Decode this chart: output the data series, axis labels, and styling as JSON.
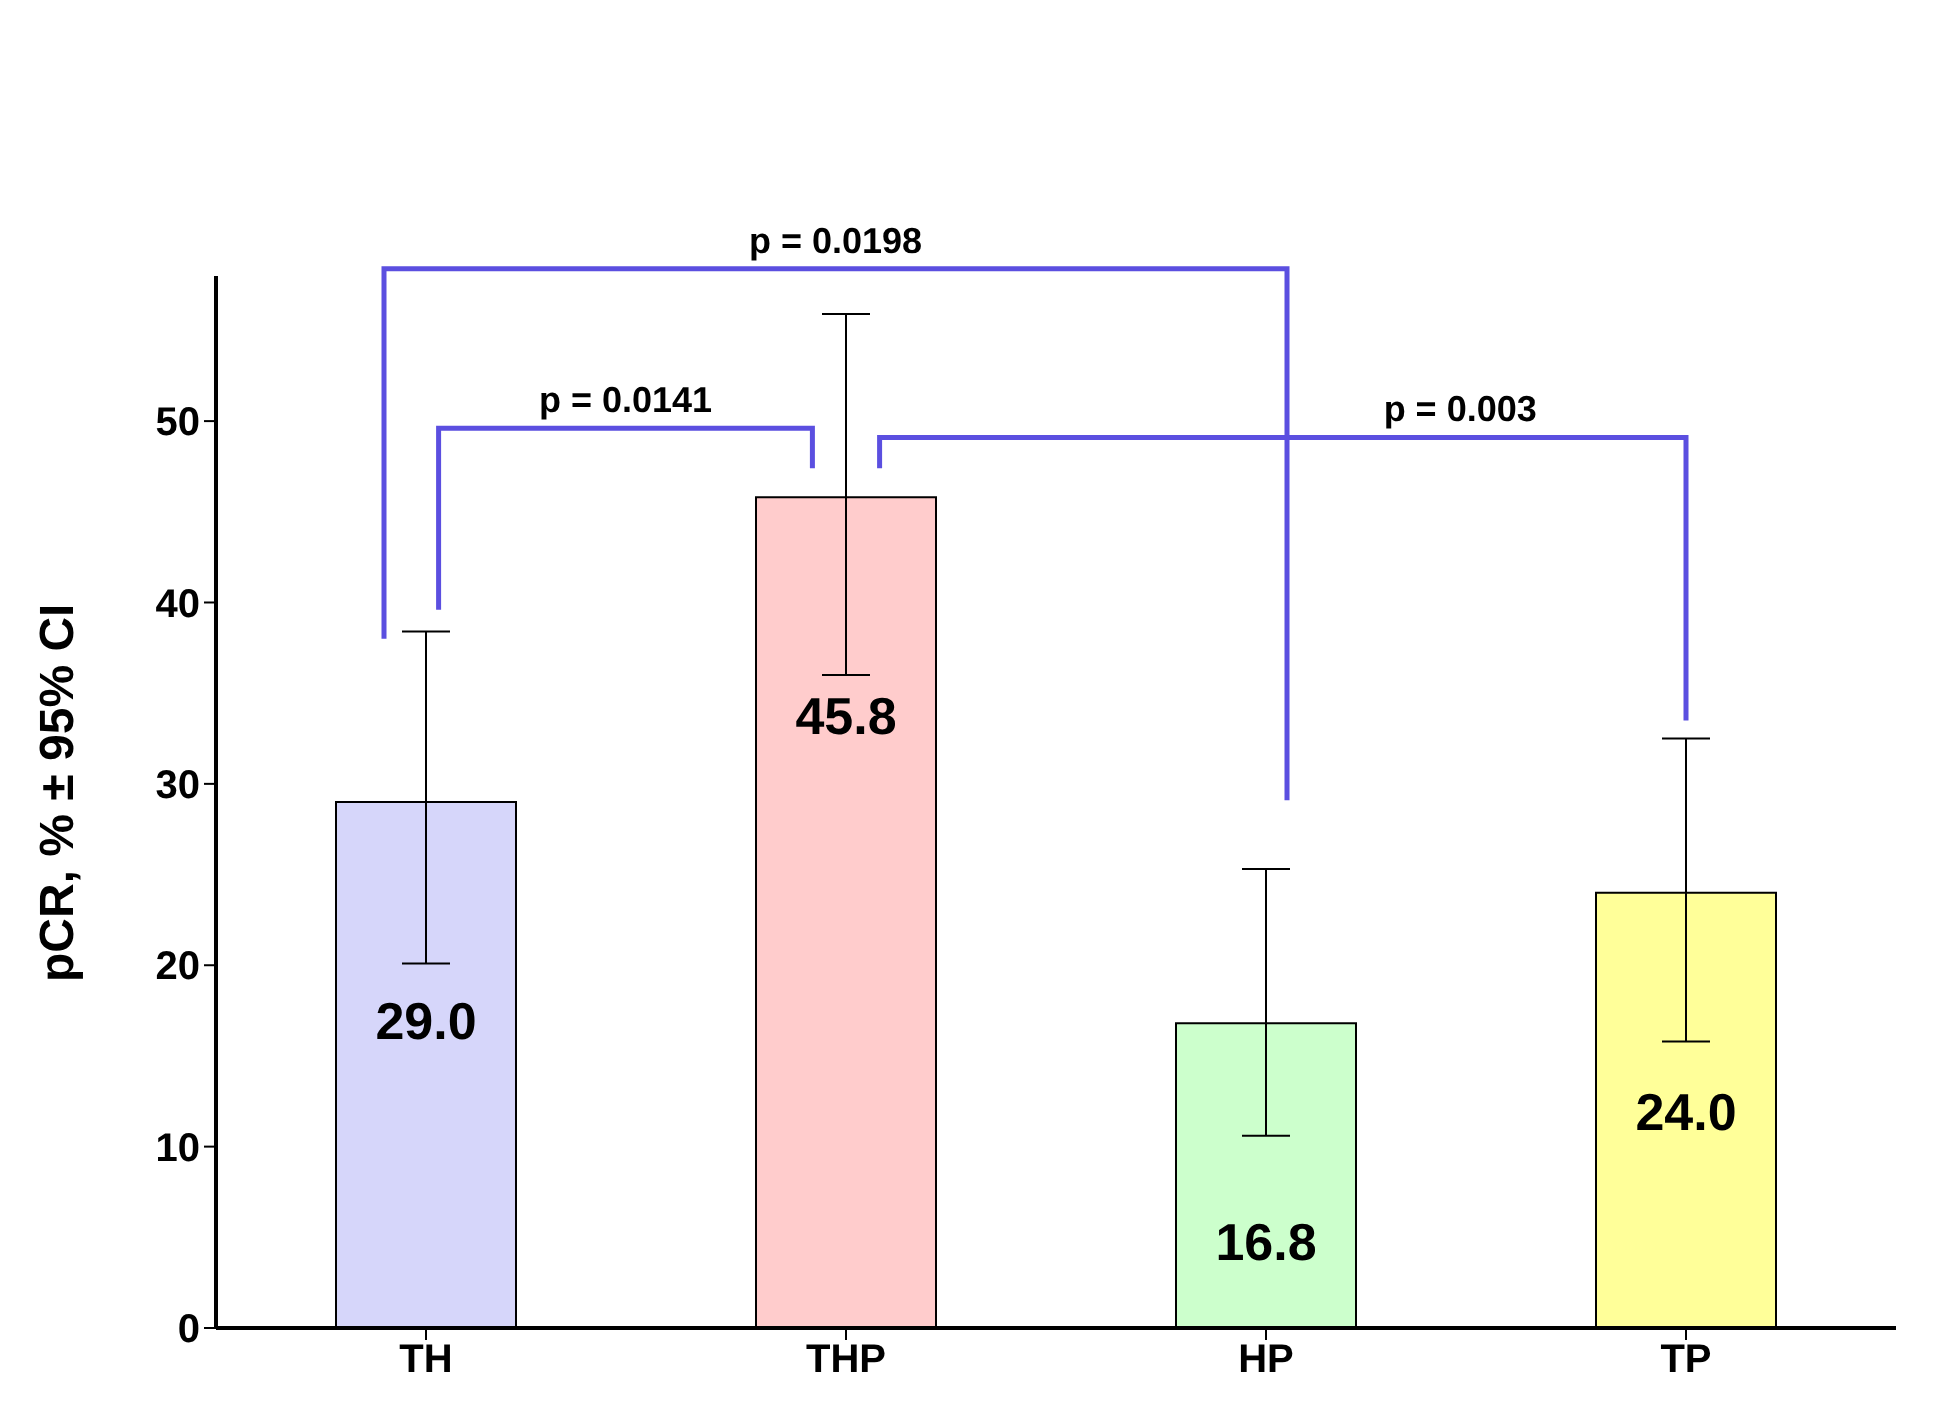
{
  "chart_data": {
    "type": "bar",
    "ylabel": "pCR, % ± 95% CI",
    "categories": [
      "TH",
      "THP",
      "HP",
      "TP"
    ],
    "values": [
      29.0,
      45.8,
      16.8,
      24.0
    ],
    "colors": [
      "#d6d6fa",
      "#ffcccc",
      "#ccffcc",
      "#ffff99"
    ],
    "errors": [
      [
        20.1,
        38.4
      ],
      [
        36.0,
        55.9
      ],
      [
        10.6,
        25.3
      ],
      [
        15.8,
        32.5
      ]
    ],
    "value_labels": [
      "29.0",
      "45.8",
      "16.8",
      "24.0"
    ],
    "ylim": [
      0,
      58
    ],
    "yticks": [
      0,
      10,
      20,
      30,
      40,
      50
    ],
    "grid": false,
    "annotations": [
      "p = 0.0198",
      "p = 0.0141",
      "p = 0.003"
    ]
  }
}
